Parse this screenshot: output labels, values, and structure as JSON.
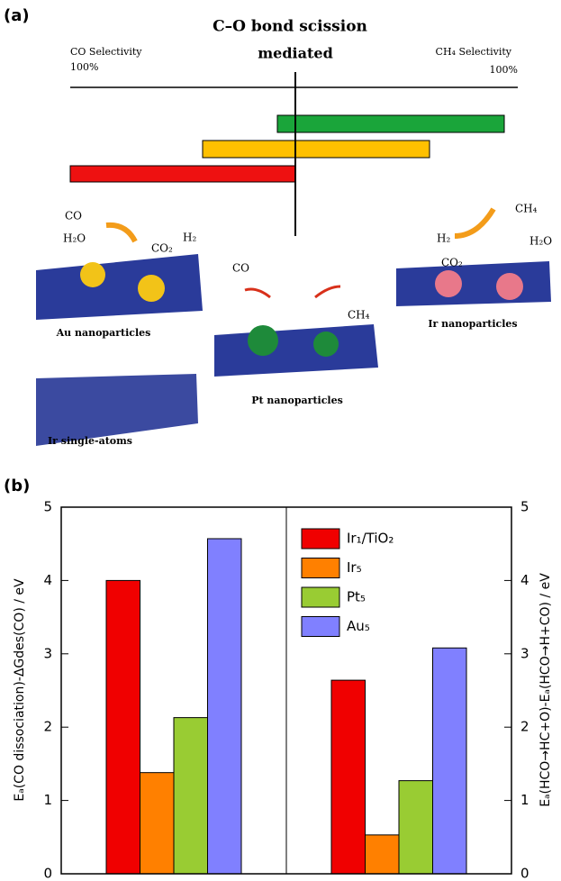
{
  "panel_labels": [
    "(a)",
    "(b)"
  ],
  "panel_a": {
    "title": "C–O bond scission",
    "subtitle": "mediated",
    "left_label": "CO Selectivity",
    "left_percent": "100%",
    "right_label": "CH₄ Selectivity",
    "right_percent": "100%",
    "captions": [
      "Au nanoparticles",
      "Pt nanoparticles",
      "Ir nanoparticles",
      "Ir single-atoms"
    ],
    "molecules": [
      "CO",
      "H₂O",
      "CO₂",
      "H₂",
      "CO",
      "CH₄",
      "H₂",
      "CO₂",
      "CH₄",
      "H₂O"
    ]
  },
  "chart_data": {
    "type": "bar",
    "categories": [
      null,
      null
    ],
    "series": [
      {
        "name": "Ir₁/TiO₂",
        "color": "#f00000",
        "values": [
          4.0,
          2.64
        ]
      },
      {
        "name": "Ir₅",
        "color": "#ff8000",
        "values": [
          1.38,
          0.53
        ]
      },
      {
        "name": "Pt₅",
        "color": "#99cc33",
        "values": [
          2.13,
          1.27
        ]
      },
      {
        "name": "Au₅",
        "color": "#8080ff",
        "values": [
          4.57,
          3.08
        ]
      }
    ],
    "y_label": "Eₐ(CO dissociation)-ΔGdes(CO) / eV",
    "y2_label": "Eₐ(HCO→HC+O)-Eₐ(HCO→H+CO) / eV",
    "ylim": [
      0,
      5
    ],
    "yticks": [
      0,
      1,
      2,
      3,
      4,
      5
    ],
    "y2lim": [
      0,
      5
    ],
    "y2ticks": [
      0,
      1,
      2,
      3,
      4,
      5
    ],
    "legend": "upper right"
  }
}
